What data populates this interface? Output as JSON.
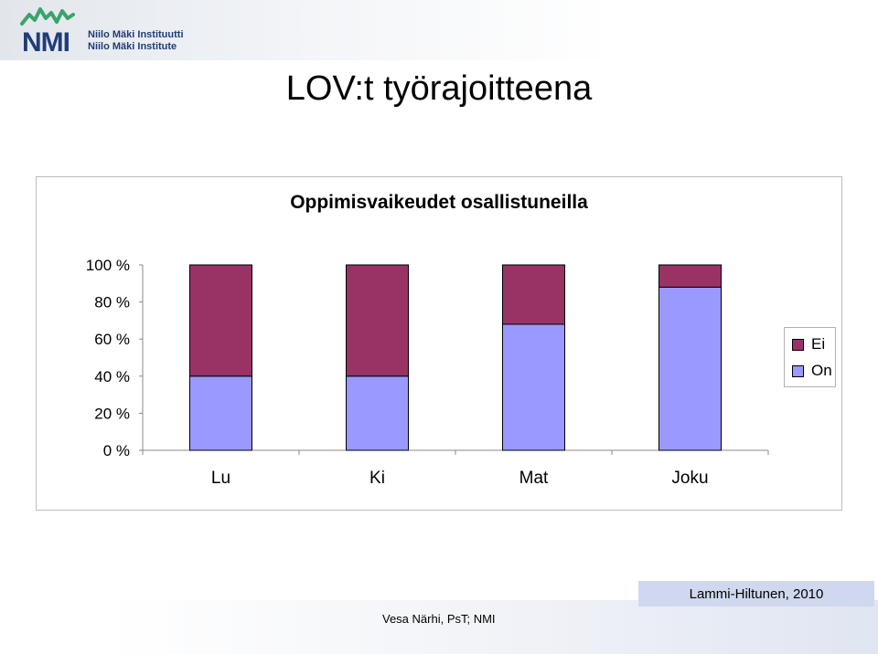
{
  "header": {
    "logo_letters": "NMI",
    "logo_line1": "Niilo Mäki Instituutti",
    "logo_line2": "Niilo Mäki Institute"
  },
  "slide": {
    "title": "LOV:t työrajoitteena"
  },
  "chart_data": {
    "type": "bar",
    "stacked": true,
    "title": "Oppimisvaikeudet osallistuneilla",
    "categories": [
      "Lu",
      "Ki",
      "Mat",
      "Joku"
    ],
    "series": [
      {
        "name": "On",
        "values": [
          40,
          40,
          68,
          88
        ],
        "color": "#9999ff"
      },
      {
        "name": "Ei",
        "values": [
          60,
          60,
          32,
          12
        ],
        "color": "#993366"
      }
    ],
    "y_ticks": [
      "0 %",
      "20 %",
      "40 %",
      "60 %",
      "80 %",
      "100 %"
    ],
    "ylim": [
      0,
      100
    ],
    "grid": false,
    "legend_position": "right"
  },
  "footer": {
    "author": "Vesa Närhi, PsT; NMI",
    "source": "Lammi-Hiltunen, 2010"
  }
}
